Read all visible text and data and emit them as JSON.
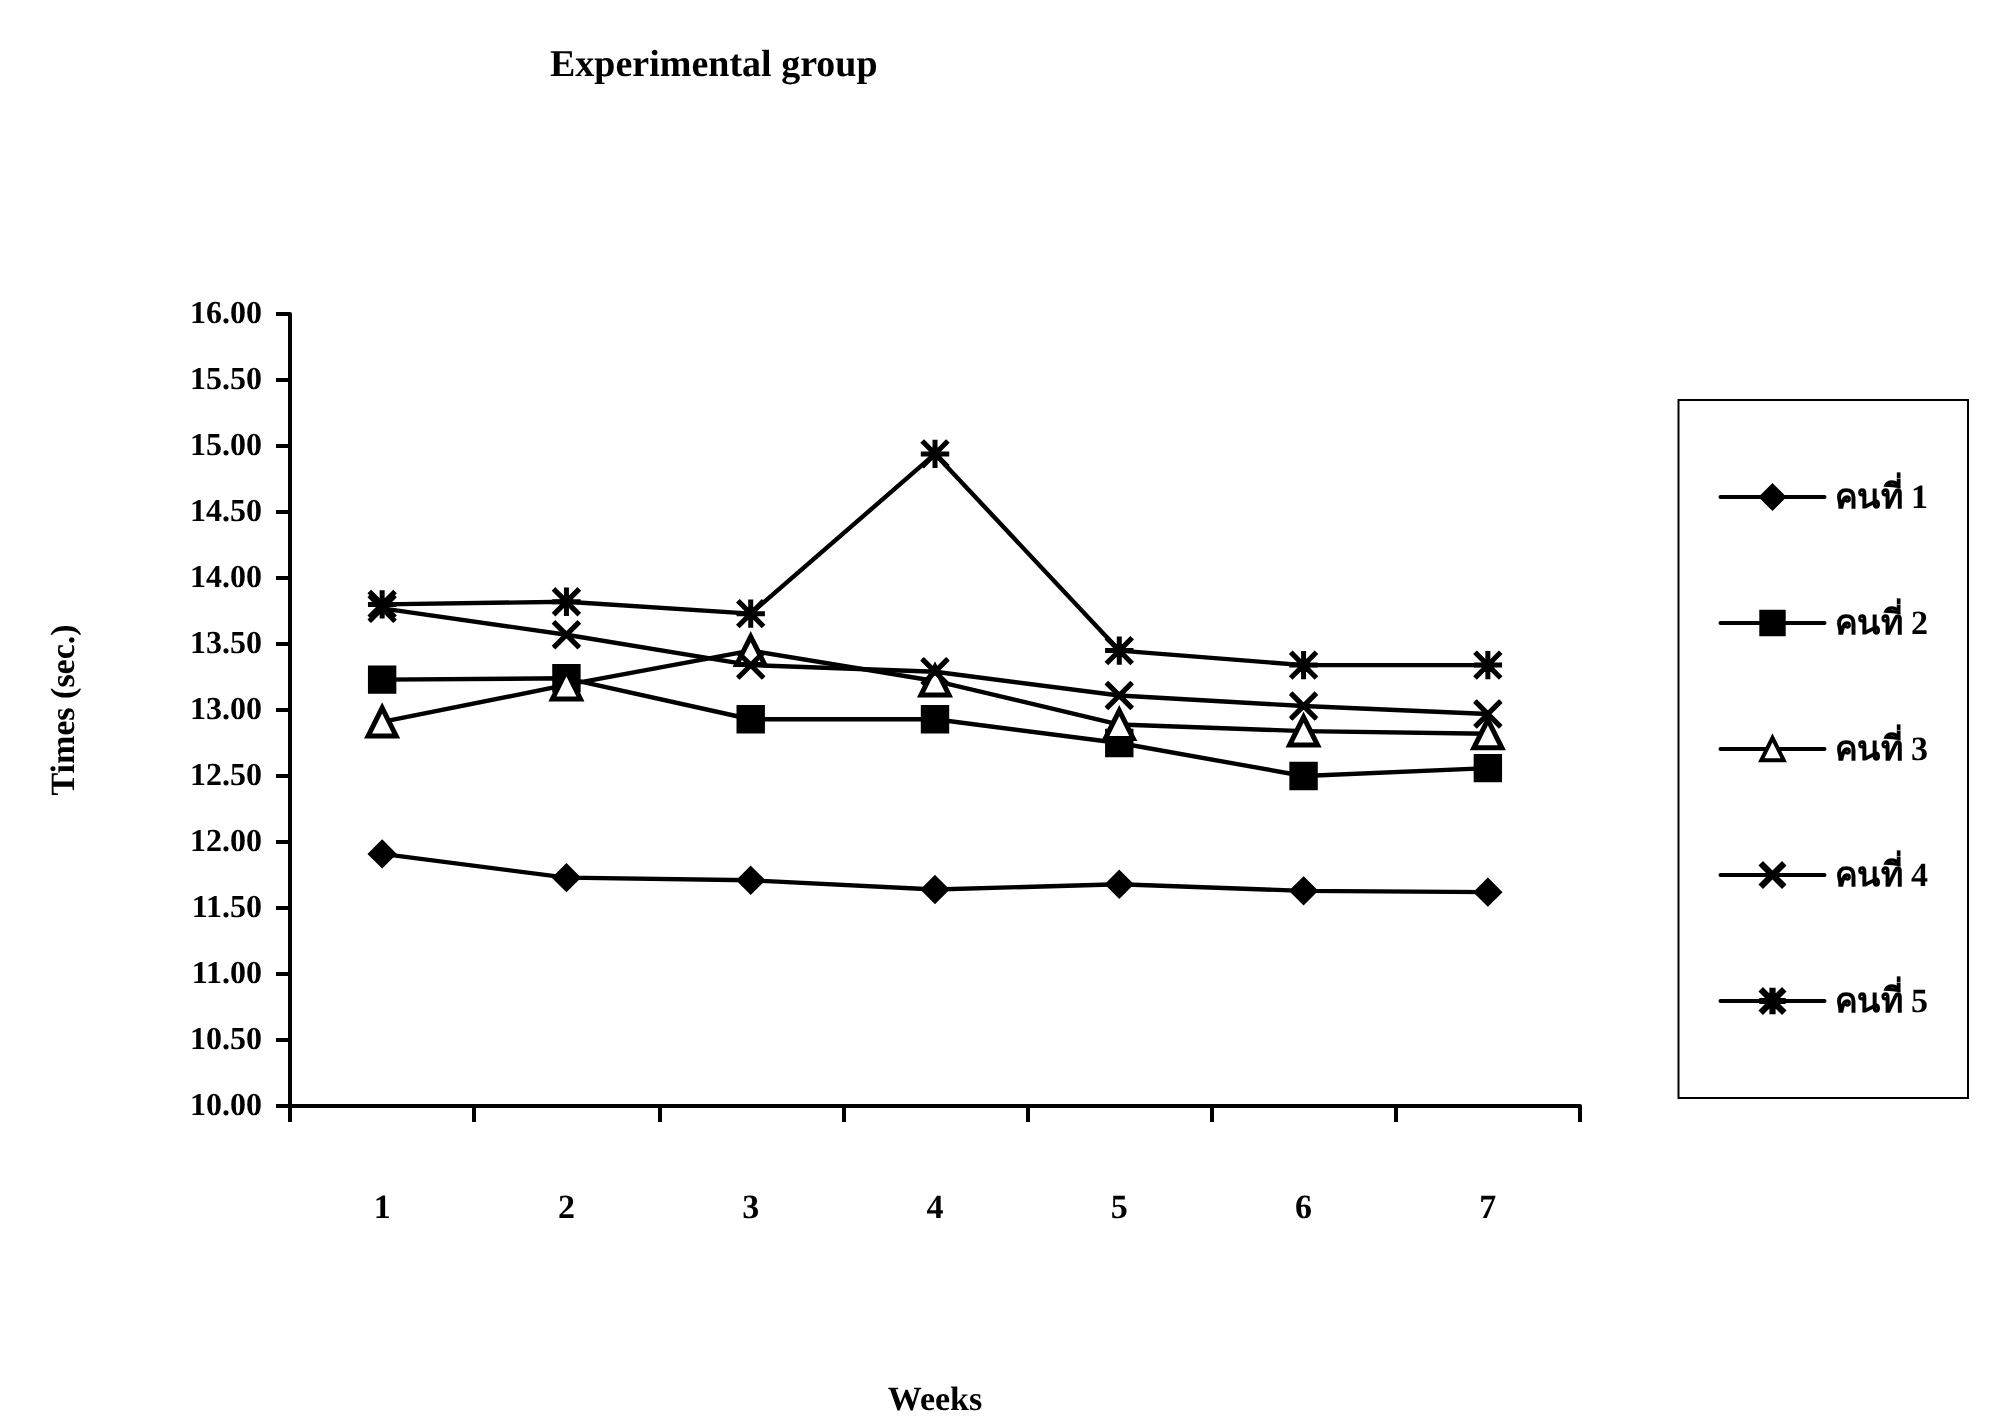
{
  "chart_data": {
    "type": "line",
    "title": "Experimental group",
    "xlabel": "Weeks",
    "ylabel": "Times (sec.)",
    "categories": [
      "1",
      "2",
      "3",
      "4",
      "5",
      "6",
      "7"
    ],
    "series": [
      {
        "name": "คนที่ 1",
        "color": "#000000",
        "marker": "diamond",
        "values": [
          11.91,
          11.73,
          11.71,
          11.64,
          11.68,
          11.63,
          11.62
        ]
      },
      {
        "name": "คนที่ 2",
        "color": "#000000",
        "marker": "square",
        "values": [
          13.23,
          13.24,
          12.93,
          12.93,
          12.75,
          12.5,
          12.56
        ]
      },
      {
        "name": "คนที่ 3",
        "color": "#000000",
        "marker": "triangle",
        "values": [
          12.91,
          13.19,
          13.45,
          13.22,
          12.89,
          12.84,
          12.82
        ]
      },
      {
        "name": "คนที่ 4",
        "color": "#000000",
        "marker": "cross",
        "values": [
          13.77,
          13.57,
          13.34,
          13.29,
          13.11,
          13.03,
          12.97
        ]
      },
      {
        "name": "คนที่ 5",
        "color": "#000000",
        "marker": "star",
        "values": [
          13.8,
          13.82,
          13.73,
          14.94,
          13.45,
          13.34,
          13.34
        ]
      }
    ],
    "ylim": [
      10,
      16
    ],
    "yticks": [
      {
        "value": 10,
        "label": "10.00"
      },
      {
        "value": 10.5,
        "label": "10.50"
      },
      {
        "value": 11,
        "label": "11.00"
      },
      {
        "value": 11.5,
        "label": "11.50"
      },
      {
        "value": 12,
        "label": "12.00"
      },
      {
        "value": 12.5,
        "label": "12.50"
      },
      {
        "value": 13,
        "label": "13.00"
      },
      {
        "value": 13.5,
        "label": "13.50"
      },
      {
        "value": 14,
        "label": "14.00"
      },
      {
        "value": 14.5,
        "label": "14.50"
      },
      {
        "value": 15,
        "label": "15.00"
      },
      {
        "value": 15.5,
        "label": "15.50"
      },
      {
        "value": 16,
        "label": "16.00"
      }
    ],
    "grid": false,
    "legend": "right",
    "line_style": "solid"
  }
}
